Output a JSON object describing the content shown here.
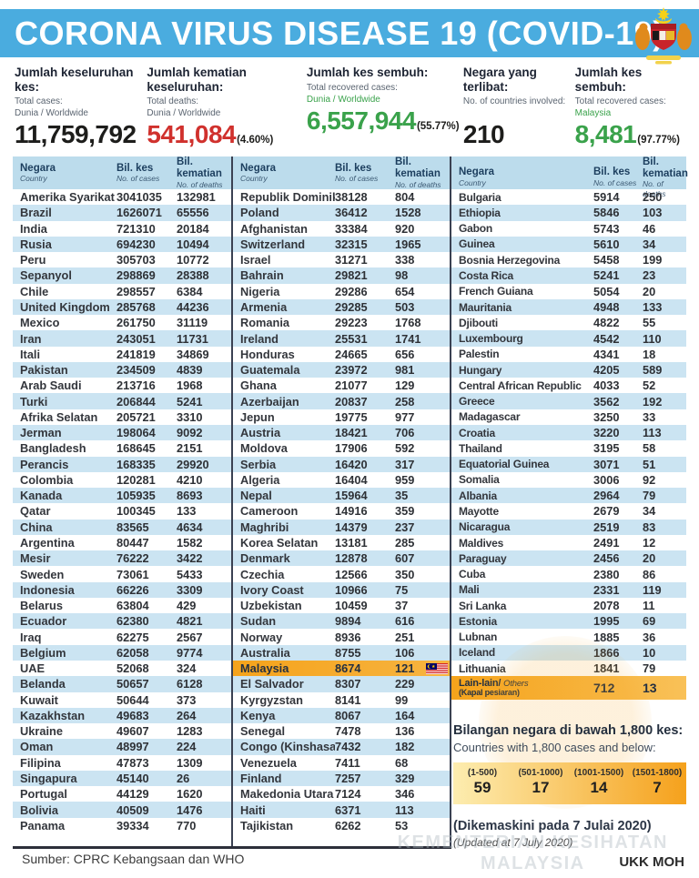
{
  "colors": {
    "banner_blue": "#4aacdf",
    "table_header_bg": "#bcdcec",
    "row_stripe": "#cbe4f2",
    "highlight_orange": "#f5a31b",
    "deaths_red": "#d0312d",
    "recovered_green": "#3aa24b",
    "navy_text": "#1c3e5e"
  },
  "header": {
    "title": "CORONA VIRUS DISEASE 19 (COVID-19)"
  },
  "stats": [
    {
      "label_my": "Jumlah keseluruhan kes:",
      "label_en": "Total cases:",
      "scope": "Dunia / Worldwide",
      "value": "11,759,792",
      "pct": ""
    },
    {
      "label_my": "Jumlah kematian keseluruhan:",
      "label_en": "Total deaths:",
      "scope": "Dunia / Worldwide",
      "value": "541,084",
      "pct": "(4.60%)"
    },
    {
      "label_my": "Jumlah kes sembuh:",
      "label_en": "Total recovered cases:",
      "scope": "Dunia / Worldwide",
      "value": "6,557,944",
      "pct": "(55.77%)"
    },
    {
      "label_my": "Negara yang terlibat:",
      "label_en": "No. of countries involved:",
      "scope": "",
      "value": "210",
      "pct": ""
    },
    {
      "label_my": "Jumlah kes sembuh:",
      "label_en": "Total recovered cases:",
      "scope": "Malaysia",
      "value": "8,481",
      "pct": "(97.77%)"
    }
  ],
  "table": {
    "header": {
      "c1_my": "Negara",
      "c1_en": "Country",
      "c2_my": "Bil. kes",
      "c2_en": "No. of cases",
      "c3_my": "Bil. kematian",
      "c3_en": "No. of deaths"
    },
    "columns": [
      {
        "rows": [
          [
            "Amerika Syarikat",
            "3041035",
            "132981"
          ],
          [
            "Brazil",
            "1626071",
            "65556"
          ],
          [
            "India",
            "721310",
            "20184"
          ],
          [
            "Rusia",
            "694230",
            "10494"
          ],
          [
            "Peru",
            "305703",
            "10772"
          ],
          [
            "Sepanyol",
            "298869",
            "28388"
          ],
          [
            "Chile",
            "298557",
            "6384"
          ],
          [
            "United Kingdom",
            "285768",
            "44236"
          ],
          [
            "Mexico",
            "261750",
            "31119"
          ],
          [
            "Iran",
            "243051",
            "11731"
          ],
          [
            "Itali",
            "241819",
            "34869"
          ],
          [
            "Pakistan",
            "234509",
            "4839"
          ],
          [
            "Arab Saudi",
            "213716",
            "1968"
          ],
          [
            "Turki",
            "206844",
            "5241"
          ],
          [
            "Afrika Selatan",
            "205721",
            "3310"
          ],
          [
            "Jerman",
            "198064",
            "9092"
          ],
          [
            "Bangladesh",
            "168645",
            "2151"
          ],
          [
            "Perancis",
            "168335",
            "29920"
          ],
          [
            "Colombia",
            "120281",
            "4210"
          ],
          [
            "Kanada",
            "105935",
            "8693"
          ],
          [
            "Qatar",
            "100345",
            "133"
          ],
          [
            "China",
            "83565",
            "4634"
          ],
          [
            "Argentina",
            "80447",
            "1582"
          ],
          [
            "Mesir",
            "76222",
            "3422"
          ],
          [
            "Sweden",
            "73061",
            "5433"
          ],
          [
            "Indonesia",
            "66226",
            "3309"
          ],
          [
            "Belarus",
            "63804",
            "429"
          ],
          [
            "Ecuador",
            "62380",
            "4821"
          ],
          [
            "Iraq",
            "62275",
            "2567"
          ],
          [
            "Belgium",
            "62058",
            "9774"
          ],
          [
            "UAE",
            "52068",
            "324"
          ],
          [
            "Belanda",
            "50657",
            "6128"
          ],
          [
            "Kuwait",
            "50644",
            "373"
          ],
          [
            "Kazakhstan",
            "49683",
            "264"
          ],
          [
            "Ukraine",
            "49607",
            "1283"
          ],
          [
            "Oman",
            "48997",
            "224"
          ],
          [
            "Filipina",
            "47873",
            "1309"
          ],
          [
            "Singapura",
            "45140",
            "26"
          ],
          [
            "Portugal",
            "44129",
            "1620"
          ],
          [
            "Bolivia",
            "40509",
            "1476"
          ],
          [
            "Panama",
            "39334",
            "770"
          ]
        ]
      },
      {
        "rows": [
          [
            "Republik Dominika",
            "38128",
            "804"
          ],
          [
            "Poland",
            "36412",
            "1528"
          ],
          [
            "Afghanistan",
            "33384",
            "920"
          ],
          [
            "Switzerland",
            "32315",
            "1965"
          ],
          [
            "Israel",
            "31271",
            "338"
          ],
          [
            "Bahrain",
            "29821",
            "98"
          ],
          [
            "Nigeria",
            "29286",
            "654"
          ],
          [
            "Armenia",
            "29285",
            "503"
          ],
          [
            "Romania",
            "29223",
            "1768"
          ],
          [
            "Ireland",
            "25531",
            "1741"
          ],
          [
            "Honduras",
            "24665",
            "656"
          ],
          [
            "Guatemala",
            "23972",
            "981"
          ],
          [
            "Ghana",
            "21077",
            "129"
          ],
          [
            "Azerbaijan",
            "20837",
            "258"
          ],
          [
            "Jepun",
            "19775",
            "977"
          ],
          [
            "Austria",
            "18421",
            "706"
          ],
          [
            "Moldova",
            "17906",
            "592"
          ],
          [
            "Serbia",
            "16420",
            "317"
          ],
          [
            "Algeria",
            "16404",
            "959"
          ],
          [
            "Nepal",
            "15964",
            "35"
          ],
          [
            "Cameroon",
            "14916",
            "359"
          ],
          [
            "Maghribi",
            "14379",
            "237"
          ],
          [
            "Korea Selatan",
            "13181",
            "285"
          ],
          [
            "Denmark",
            "12878",
            "607"
          ],
          [
            "Czechia",
            "12566",
            "350"
          ],
          [
            "Ivory Coast",
            "10966",
            "75"
          ],
          [
            "Uzbekistan",
            "10459",
            "37"
          ],
          [
            "Sudan",
            "9894",
            "616"
          ],
          [
            "Norway",
            "8936",
            "251"
          ],
          [
            "Australia",
            "8755",
            "106"
          ],
          {
            "name": "Malaysia",
            "cases": "8674",
            "deaths": "121",
            "highlight": true,
            "flag": "malaysia-flag"
          },
          [
            "El Salvador",
            "8307",
            "229"
          ],
          [
            "Kyrgyzstan",
            "8141",
            "99"
          ],
          [
            "Kenya",
            "8067",
            "164"
          ],
          [
            "Senegal",
            "7478",
            "136"
          ],
          [
            "Congo (Kinshasa)",
            "7432",
            "182"
          ],
          [
            "Venezuela",
            "7411",
            "68"
          ],
          [
            "Finland",
            "7257",
            "329"
          ],
          [
            "Makedonia Utara",
            "7124",
            "346"
          ],
          [
            "Haiti",
            "6371",
            "113"
          ],
          [
            "Tajikistan",
            "6262",
            "53"
          ]
        ]
      },
      {
        "rows": [
          [
            "Bulgaria",
            "5914",
            "250"
          ],
          [
            "Ethiopia",
            "5846",
            "103"
          ],
          [
            "Gabon",
            "5743",
            "46"
          ],
          [
            "Guinea",
            "5610",
            "34"
          ],
          [
            "Bosnia Herzegovina",
            "5458",
            "199"
          ],
          [
            "Costa Rica",
            "5241",
            "23"
          ],
          [
            "French Guiana",
            "5054",
            "20"
          ],
          [
            "Mauritania",
            "4948",
            "133"
          ],
          [
            "Djibouti",
            "4822",
            "55"
          ],
          [
            "Luxembourg",
            "4542",
            "110"
          ],
          [
            "Palestin",
            "4341",
            "18"
          ],
          [
            "Hungary",
            "4205",
            "589"
          ],
          [
            "Central African Republic",
            "4033",
            "52"
          ],
          [
            "Greece",
            "3562",
            "192"
          ],
          [
            "Madagascar",
            "3250",
            "33"
          ],
          [
            "Croatia",
            "3220",
            "113"
          ],
          [
            "Thailand",
            "3195",
            "58"
          ],
          [
            "Equatorial Guinea",
            "3071",
            "51"
          ],
          [
            "Somalia",
            "3006",
            "92"
          ],
          [
            "Albania",
            "2964",
            "79"
          ],
          [
            "Mayotte",
            "2679",
            "34"
          ],
          [
            "Nicaragua",
            "2519",
            "83"
          ],
          [
            "Maldives",
            "2491",
            "12"
          ],
          [
            "Paraguay",
            "2456",
            "20"
          ],
          [
            "Cuba",
            "2380",
            "86"
          ],
          [
            "Mali",
            "2331",
            "119"
          ],
          [
            "Sri Lanka",
            "2078",
            "11"
          ],
          [
            "Estonia",
            "1995",
            "69"
          ],
          [
            "Lubnan",
            "1885",
            "36"
          ],
          [
            "Iceland",
            "1866",
            "10"
          ],
          [
            "Lithuania",
            "1841",
            "79"
          ],
          {
            "name": "Lain-lain/",
            "name_en": "Others",
            "name_sub": "(Kapal pesiaran)",
            "cases": "712",
            "deaths": "13",
            "highlight": true,
            "tall": true
          }
        ]
      }
    ]
  },
  "summary_box": {
    "title_my": "Bilangan negara di bawah 1,800 kes:",
    "title_en": "Countries with 1,800 cases and below:",
    "categories": [
      {
        "range": "(1-500)",
        "count": "59"
      },
      {
        "range": "(501-1000)",
        "count": "17"
      },
      {
        "range": "(1001-1500)",
        "count": "14"
      },
      {
        "range": "(1501-1800)",
        "count": "7"
      }
    ]
  },
  "updated": {
    "my": "(Dikemaskini pada 7 Julai 2020)",
    "en": "(Updated at 7 July 2020)"
  },
  "footer": {
    "source": "Sumber: CPRC Kebangsaan dan WHO",
    "agency": "UKK MOH",
    "watermark_line1": "KEMENTERIAN KESIHATAN",
    "watermark_line2": "MALAYSIA"
  }
}
